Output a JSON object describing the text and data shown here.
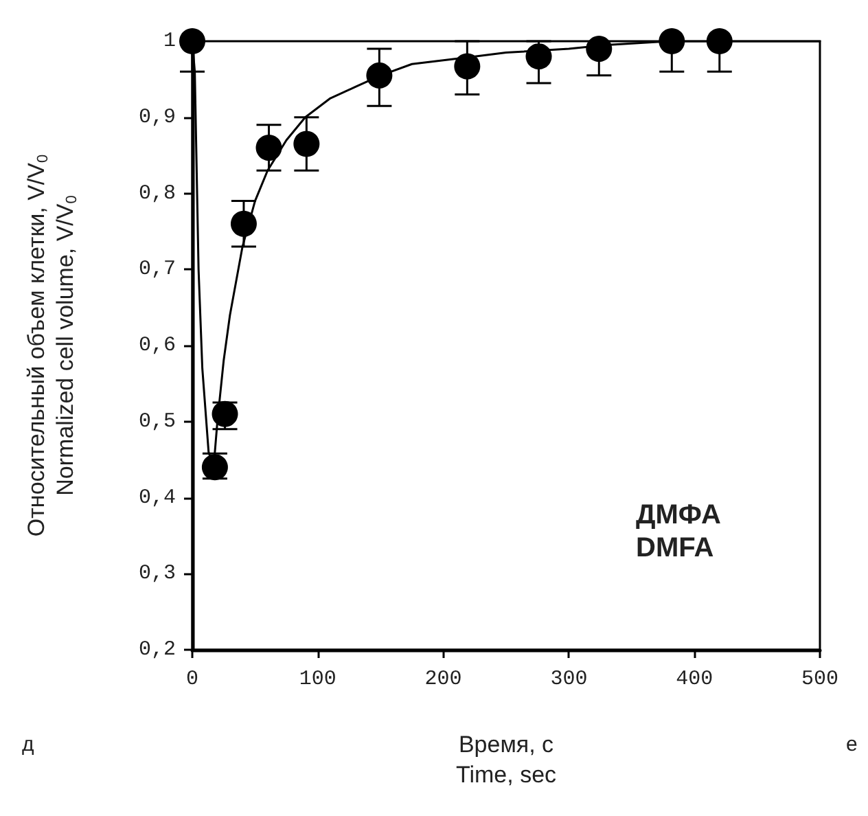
{
  "chart_data": {
    "type": "scatter",
    "xlabel": "Время, с\nTime, sec",
    "ylabel": "Относительный объем клетки, V/V$_{0}$\nNormalized cell volume, V/V$_{0}$",
    "annotations": [
      "ДМФА\nDMFA",
      "д",
      "е"
    ],
    "xlim": [
      0,
      500
    ],
    "xticks": [
      0,
      100,
      200,
      300,
      400,
      500
    ],
    "ylim": [
      0.2,
      1
    ],
    "yticks": [
      {
        "value": 0.2,
        "label": "0,2"
      },
      {
        "value": 0.3,
        "label": "0,3"
      },
      {
        "value": 0.4,
        "label": "0,4"
      },
      {
        "value": 0.5,
        "label": "0,5"
      },
      {
        "value": 0.6,
        "label": "0,6"
      },
      {
        "value": 0.7,
        "label": "0,7"
      },
      {
        "value": 0.8,
        "label": "0,8"
      },
      {
        "value": 0.9,
        "label": "0,9"
      },
      {
        "value": 1,
        "label": "1"
      }
    ],
    "grid": false,
    "series": [
      {
        "color": "#000000",
        "marker": "circle",
        "x": [
          0,
          18,
          26,
          41,
          61,
          91,
          149,
          219,
          276,
          324,
          382,
          420
        ],
        "values": [
          1,
          0.44,
          0.51,
          0.76,
          0.86,
          0.865,
          0.955,
          0.967,
          0.98,
          0.99,
          1,
          1
        ],
        "errors": [
          [
            0.96,
            1
          ],
          [
            0.425,
            0.458
          ],
          [
            0.49,
            0.525
          ],
          [
            0.73,
            0.79
          ],
          [
            0.83,
            0.89
          ],
          [
            0.83,
            0.9
          ],
          [
            0.915,
            0.99
          ],
          [
            0.93,
            1.0
          ],
          [
            0.945,
            1.0
          ],
          [
            0.955,
            0.99
          ],
          [
            0.96,
            1.0
          ],
          [
            0.96,
            1.0
          ]
        ]
      },
      {
        "type": "line",
        "color": "#000000",
        "marker": "none",
        "line_style": "solid",
        "x": [
          0,
          2,
          5,
          8,
          13,
          17,
          20,
          25,
          30,
          40,
          50,
          60,
          75,
          90,
          110,
          130,
          150,
          175,
          200,
          225,
          250,
          300,
          330,
          380,
          500
        ],
        "values": [
          1,
          0.96,
          0.7,
          0.57,
          0.46,
          0.44,
          0.5,
          0.58,
          0.64,
          0.73,
          0.79,
          0.83,
          0.87,
          0.9,
          0.925,
          0.94,
          0.955,
          0.97,
          0.975,
          0.98,
          0.985,
          0.99,
          0.995,
          1,
          1
        ]
      }
    ]
  }
}
